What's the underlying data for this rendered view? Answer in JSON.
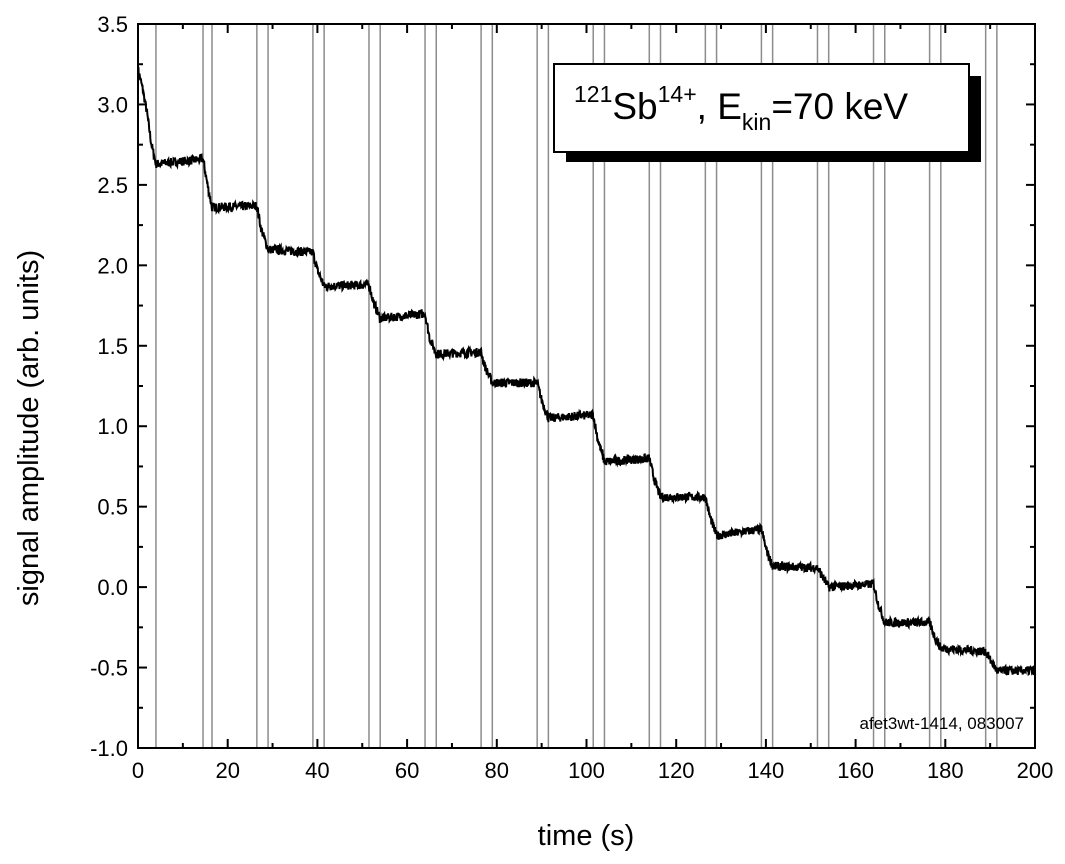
{
  "chart_data": {
    "type": "line",
    "xlabel": "time (s)",
    "ylabel": "signal amplitude (arb. units)",
    "xlim": [
      0,
      200
    ],
    "ylim": [
      -1.0,
      3.5
    ],
    "x_ticks": [
      0,
      20,
      40,
      60,
      80,
      100,
      120,
      140,
      160,
      180,
      200
    ],
    "x_tick_labels": [
      "0",
      "20",
      "40",
      "60",
      "80",
      "100",
      "120",
      "140",
      "160",
      "180",
      "200"
    ],
    "y_ticks": [
      -1.0,
      -0.5,
      0.0,
      0.5,
      1.0,
      1.5,
      2.0,
      2.5,
      3.0,
      3.5
    ],
    "y_tick_labels": [
      "-1.0",
      "-0.5",
      "0.0",
      "0.5",
      "1.0",
      "1.5",
      "2.0",
      "2.5",
      "3.0",
      "3.5"
    ],
    "grid": false,
    "vertical_markers": [
      4,
      14.5,
      16.5,
      26.5,
      29,
      39,
      41.5,
      51.5,
      54,
      64,
      66.5,
      76.5,
      79,
      89,
      91.5,
      101.5,
      104,
      114,
      116.5,
      126.5,
      129,
      139,
      141.5,
      151.5,
      154,
      164,
      166.5,
      176.5,
      179,
      189,
      191.5
    ],
    "marker_color": "#8c8c8c",
    "series_color": "#000000",
    "series": [
      {
        "x": [
          0,
          1,
          2,
          3,
          4,
          14.5,
          15.5,
          16.5,
          26.5,
          27.5,
          29,
          39,
          40,
          41.5,
          51.5,
          52.5,
          54,
          64,
          65,
          66.5,
          76.5,
          77.5,
          79,
          89,
          90,
          91.5,
          101.5,
          102.5,
          104,
          114,
          115,
          116.5,
          126.5,
          127.5,
          129,
          139,
          140,
          141.5,
          151.5,
          152.5,
          154,
          164,
          165,
          166.5,
          176.5,
          177.5,
          179,
          189,
          190,
          191.5,
          200
        ],
        "y": [
          3.22,
          3.1,
          2.95,
          2.75,
          2.63,
          2.66,
          2.5,
          2.36,
          2.37,
          2.22,
          2.1,
          2.08,
          1.97,
          1.87,
          1.88,
          1.77,
          1.67,
          1.7,
          1.55,
          1.45,
          1.46,
          1.36,
          1.27,
          1.27,
          1.16,
          1.05,
          1.07,
          0.92,
          0.78,
          0.8,
          0.68,
          0.56,
          0.56,
          0.44,
          0.32,
          0.36,
          0.24,
          0.13,
          0.12,
          0.07,
          0.0,
          0.02,
          -0.1,
          -0.22,
          -0.22,
          -0.3,
          -0.38,
          -0.4,
          -0.45,
          -0.52,
          -0.52
        ]
      }
    ],
    "legend": {
      "mass_number": "121",
      "element": "Sb",
      "charge": "14+",
      "separator": ", E",
      "subscript": "kin",
      "energy": "=70 keV",
      "placement": "top-right"
    },
    "footnote": "afet3wt-1414, 083007"
  }
}
